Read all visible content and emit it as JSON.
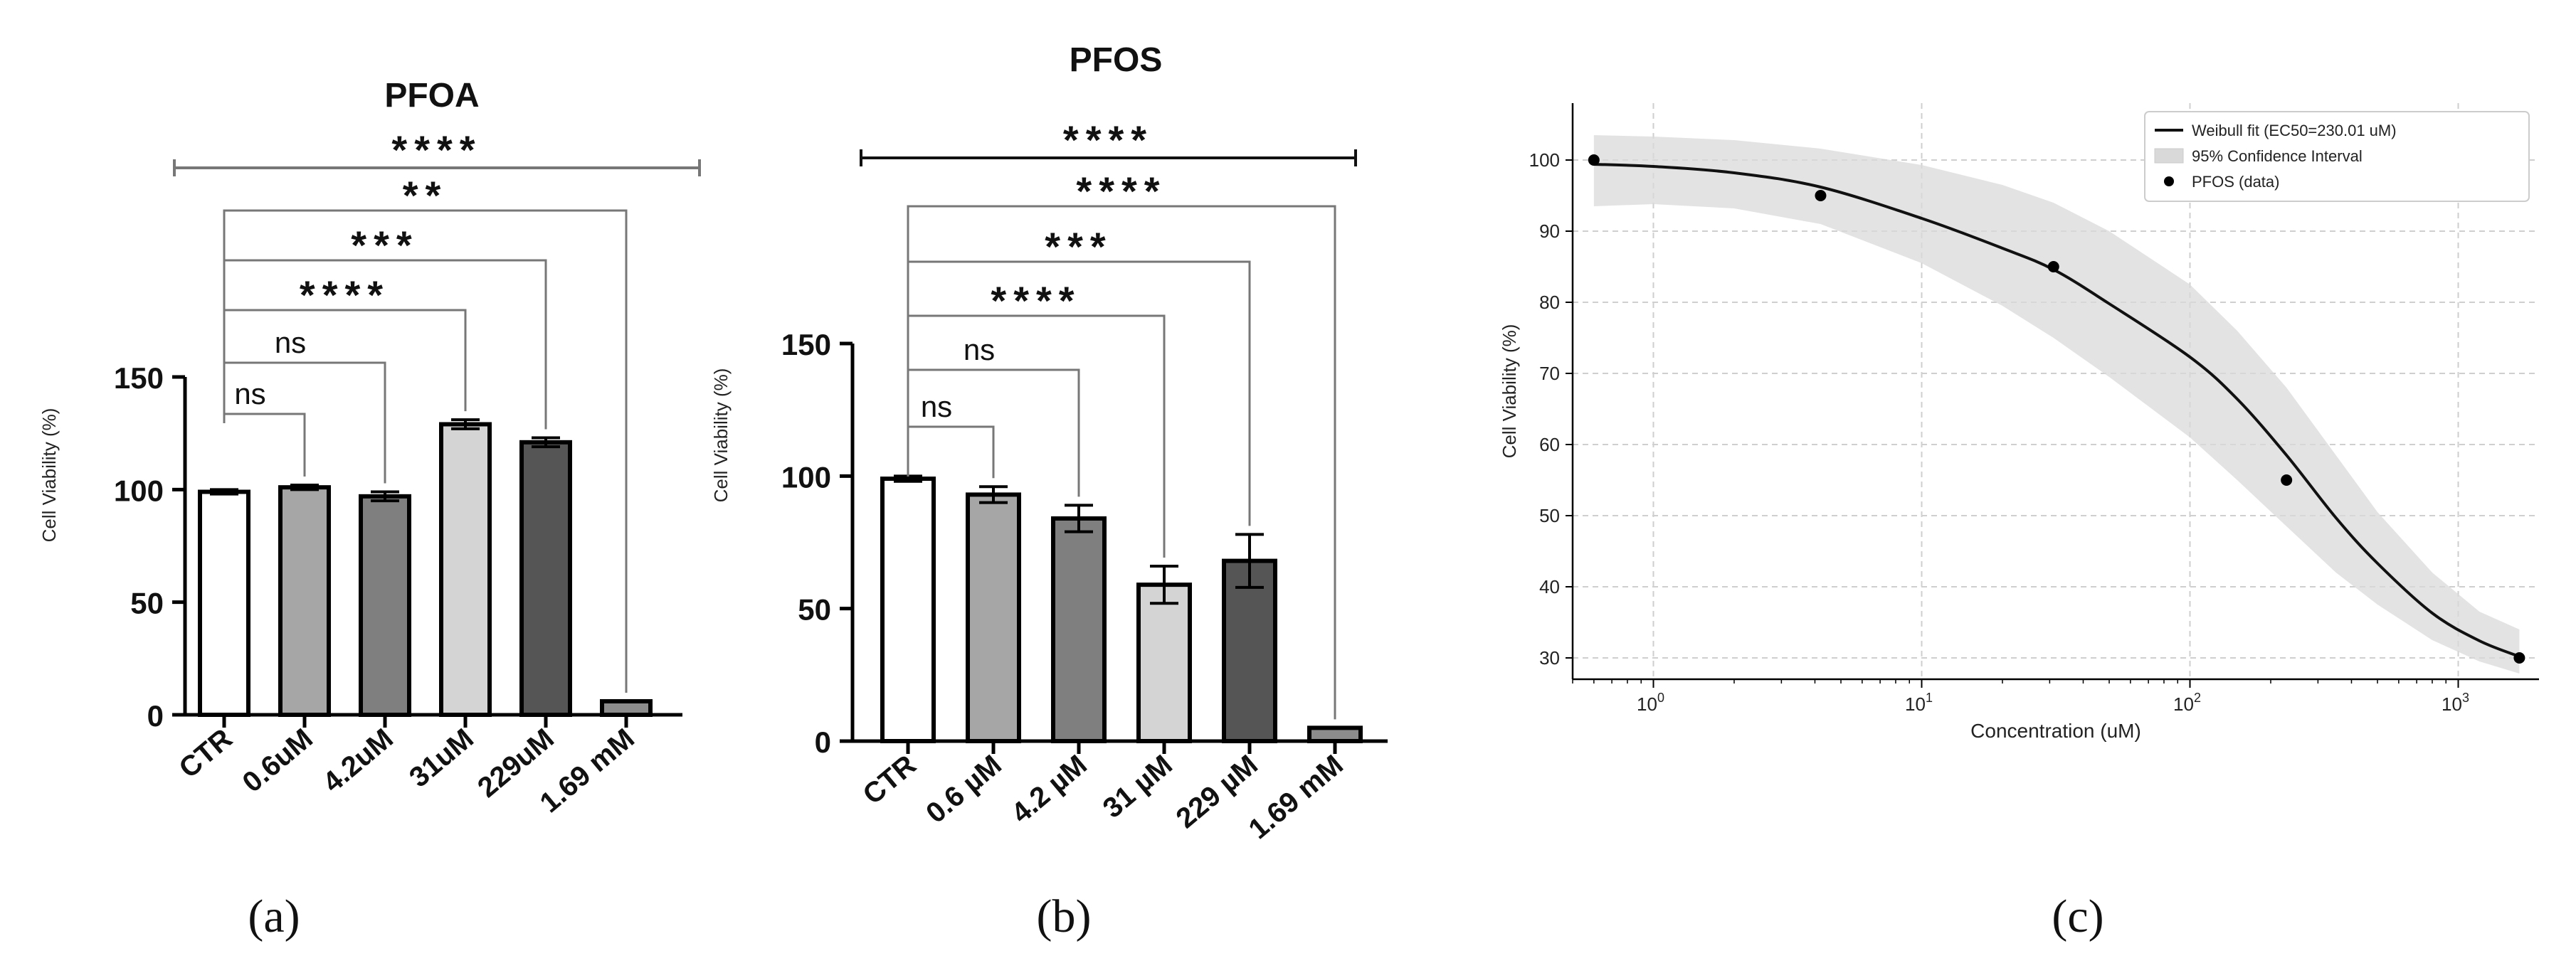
{
  "chart_data": [
    {
      "panel": "a",
      "type": "bar",
      "title": "PFOA",
      "ylabel": "Cell Viability (%)",
      "ylim": [
        0,
        150
      ],
      "yticks": [
        0,
        50,
        100,
        150
      ],
      "categories": [
        "CTR",
        "0.6uM",
        "4.2uM",
        "31uM",
        "229uM",
        "1.69 mM"
      ],
      "values": [
        99,
        101,
        97,
        129,
        121,
        6
      ],
      "errors": [
        1,
        1,
        2,
        2,
        2,
        0
      ],
      "colors": [
        "#ffffff",
        "#a6a6a6",
        "#7f7f7f",
        "#d4d4d4",
        "#555555",
        "#8c8c8c"
      ],
      "significance": [
        {
          "from": 0,
          "to": 1,
          "label": "ns"
        },
        {
          "from": 0,
          "to": 2,
          "label": "ns"
        },
        {
          "from": 0,
          "to": 3,
          "label": "****"
        },
        {
          "from": 0,
          "to": 4,
          "label": "***"
        },
        {
          "from": 0,
          "to": 5,
          "label": "**"
        },
        {
          "label": "****",
          "overall": true
        }
      ],
      "panel_label": "(a)"
    },
    {
      "panel": "b",
      "type": "bar",
      "title": "PFOS",
      "ylabel": "Cell Viability (%)",
      "ylim": [
        0,
        150
      ],
      "yticks": [
        0,
        50,
        100,
        150
      ],
      "categories": [
        "CTR",
        "0.6 µM",
        "4.2 µM",
        "31 µM",
        "229 µM",
        "1.69 mM"
      ],
      "values": [
        99,
        93,
        84,
        59,
        68,
        5
      ],
      "errors": [
        1,
        3,
        5,
        7,
        10,
        0
      ],
      "colors": [
        "#ffffff",
        "#a6a6a6",
        "#7f7f7f",
        "#d4d4d4",
        "#555555",
        "#8c8c8c"
      ],
      "significance": [
        {
          "from": 0,
          "to": 1,
          "label": "ns"
        },
        {
          "from": 0,
          "to": 2,
          "label": "ns"
        },
        {
          "from": 0,
          "to": 3,
          "label": "****"
        },
        {
          "from": 0,
          "to": 4,
          "label": "***"
        },
        {
          "from": 0,
          "to": 5,
          "label": "****"
        },
        {
          "label": "****",
          "overall": true
        }
      ],
      "panel_label": "(b)"
    },
    {
      "panel": "c",
      "type": "scatter",
      "xlabel": "Concentration (uM)",
      "ylabel": "Cell Viability (%)",
      "xscale": "log",
      "xlim": [
        0.5,
        2000
      ],
      "ylim": [
        27,
        108
      ],
      "xticks": [
        1,
        10,
        100,
        1000
      ],
      "xtick_labels": [
        {
          "base": "10",
          "exp": "0"
        },
        {
          "base": "10",
          "exp": "1"
        },
        {
          "base": "10",
          "exp": "2"
        },
        {
          "base": "10",
          "exp": "3"
        }
      ],
      "yticks": [
        30,
        40,
        50,
        60,
        70,
        80,
        90,
        100
      ],
      "grid": true,
      "legend_position": "top-right",
      "data": {
        "name": "PFOS (data)",
        "x": [
          0.6,
          4.2,
          31,
          229,
          1690
        ],
        "y": [
          100,
          95,
          85,
          55,
          30
        ]
      },
      "fit": {
        "name": "Weibull fit (EC50=230.01 uM)",
        "x": [
          0.6,
          1,
          2,
          4.2,
          10,
          20,
          31,
          50,
          100,
          150,
          229,
          350,
          500,
          800,
          1200,
          1690
        ],
        "y": [
          99.4,
          99.1,
          98.2,
          96.2,
          91.8,
          87.6,
          84.6,
          79.8,
          72.3,
          66.4,
          58.5,
          49.7,
          43.3,
          36.3,
          32.4,
          30.2
        ]
      },
      "confidence_interval": {
        "name": "95% Confidence Interval",
        "x": [
          0.6,
          1,
          2,
          4.2,
          10,
          20,
          31,
          50,
          100,
          150,
          229,
          350,
          500,
          800,
          1200,
          1690
        ],
        "upper": [
          103.5,
          103.3,
          102.8,
          101.6,
          99.3,
          96.5,
          94.0,
          90.0,
          82.5,
          76.0,
          68.0,
          58.5,
          50.5,
          42.0,
          36.5,
          34.0
        ],
        "lower": [
          93.5,
          93.8,
          93.2,
          91.0,
          85.5,
          79.5,
          75.0,
          69.5,
          61.0,
          55.0,
          48.5,
          42.0,
          37.5,
          32.5,
          29.5,
          27.8
        ]
      },
      "legend": [
        "Weibull fit (EC50=230.01 uM)",
        "95% Confidence Interval",
        "PFOS (data)"
      ],
      "panel_label": "(c)"
    }
  ]
}
